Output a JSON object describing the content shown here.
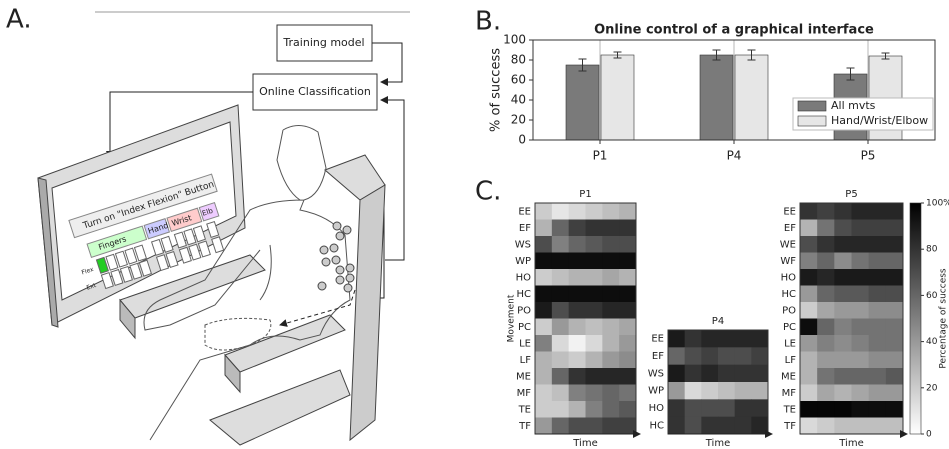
{
  "panel_labels": [
    "A.",
    "B.",
    "C."
  ],
  "diagram": {
    "boxes": [
      "Training model",
      "Online Classification"
    ],
    "screen": {
      "instruction": "Turn on \"Index Flexion\" Button",
      "groups": [
        "Fingers",
        "Hand",
        "Wrist",
        "Elb"
      ],
      "rows": [
        "Flex",
        "Ext"
      ]
    }
  },
  "chart_data": [
    {
      "type": "bar",
      "title": "Online control of a graphical interface",
      "y_label": "% of success",
      "categories": [
        "P1",
        "P4",
        "P5"
      ],
      "series": [
        {
          "name": "All mvts",
          "color": "#7a7a7a",
          "values": [
            75,
            85,
            66
          ],
          "errors": [
            6,
            5,
            6
          ]
        },
        {
          "name": "Hand/Wrist/Elbow",
          "color": "#e6e6e6",
          "values": [
            85,
            85,
            84
          ],
          "errors": [
            3,
            5,
            3
          ]
        }
      ],
      "ylim": [
        0,
        100
      ],
      "yticks": [
        0,
        20,
        40,
        60,
        80,
        100
      ],
      "grid": "x",
      "legend": "lower right"
    },
    {
      "type": "heatmap",
      "title": "P1",
      "y_label": "Movement",
      "x_label": "Time",
      "cmap": [
        "#ffffff",
        "#000000"
      ],
      "clim": [
        0,
        100
      ],
      "rows": [
        "EE",
        "EF",
        "WS",
        "WP",
        "HO",
        "HC",
        "PO",
        "PC",
        "LE",
        "LF",
        "ME",
        "MF",
        "TE",
        "TF"
      ],
      "values": [
        [
          20,
          10,
          15,
          20,
          25,
          30
        ],
        [
          30,
          60,
          75,
          80,
          80,
          80
        ],
        [
          70,
          50,
          60,
          65,
          70,
          70
        ],
        [
          95,
          95,
          95,
          95,
          95,
          95
        ],
        [
          20,
          25,
          30,
          30,
          35,
          30
        ],
        [
          95,
          95,
          95,
          95,
          95,
          95
        ],
        [
          90,
          70,
          80,
          80,
          85,
          85
        ],
        [
          20,
          40,
          30,
          25,
          30,
          35
        ],
        [
          50,
          15,
          5,
          15,
          30,
          40
        ],
        [
          30,
          25,
          20,
          30,
          40,
          45
        ],
        [
          30,
          60,
          80,
          85,
          85,
          85
        ],
        [
          20,
          25,
          50,
          55,
          60,
          55
        ],
        [
          20,
          20,
          30,
          50,
          60,
          65
        ],
        [
          40,
          60,
          70,
          70,
          75,
          75
        ]
      ]
    },
    {
      "type": "heatmap",
      "title": "P4",
      "x_label": "Time",
      "cmap": [
        "#ffffff",
        "#000000"
      ],
      "clim": [
        0,
        100
      ],
      "rows": [
        "EE",
        "EF",
        "WS",
        "WP",
        "HO",
        "HC"
      ],
      "values": [
        [
          90,
          80,
          85,
          85,
          85,
          85
        ],
        [
          60,
          70,
          75,
          70,
          70,
          75
        ],
        [
          90,
          80,
          85,
          80,
          80,
          80
        ],
        [
          40,
          15,
          20,
          25,
          30,
          30
        ],
        [
          80,
          70,
          70,
          70,
          80,
          80
        ],
        [
          80,
          70,
          80,
          80,
          80,
          85
        ]
      ]
    },
    {
      "type": "heatmap",
      "title": "P5",
      "x_label": "Time",
      "cmap": [
        "#ffffff",
        "#000000"
      ],
      "clim": [
        0,
        100
      ],
      "rows": [
        "EE",
        "EF",
        "WE",
        "WF",
        "HO",
        "HC",
        "PO",
        "PC",
        "LE",
        "LF",
        "ME",
        "MF",
        "TE",
        "TF"
      ],
      "values": [
        [
          80,
          75,
          80,
          85,
          85,
          85
        ],
        [
          30,
          55,
          70,
          75,
          75,
          75
        ],
        [
          70,
          80,
          85,
          85,
          85,
          85
        ],
        [
          50,
          60,
          45,
          55,
          60,
          60
        ],
        [
          90,
          85,
          90,
          90,
          90,
          90
        ],
        [
          40,
          60,
          65,
          65,
          70,
          70
        ],
        [
          20,
          35,
          40,
          40,
          45,
          45
        ],
        [
          95,
          60,
          50,
          55,
          55,
          55
        ],
        [
          40,
          50,
          45,
          50,
          55,
          55
        ],
        [
          30,
          40,
          40,
          40,
          45,
          45
        ],
        [
          30,
          55,
          60,
          60,
          60,
          65
        ],
        [
          20,
          35,
          30,
          35,
          40,
          40
        ],
        [
          98,
          98,
          98,
          95,
          95,
          95
        ],
        [
          15,
          20,
          25,
          25,
          25,
          25
        ]
      ],
      "colorbar": {
        "label": "Percentage of success",
        "ticks": [
          0,
          20,
          40,
          60,
          80,
          {
            "value": 100,
            "label": "100%"
          }
        ]
      }
    }
  ]
}
